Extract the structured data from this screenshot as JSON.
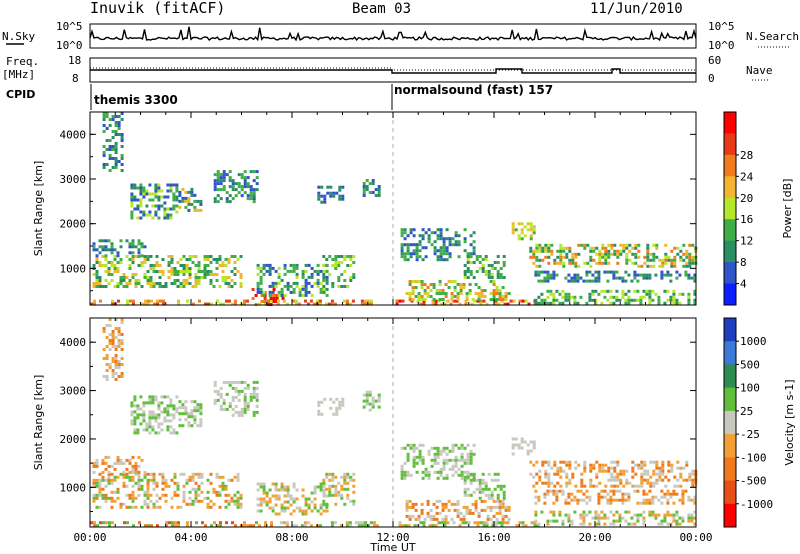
{
  "header": {
    "station": "Inuvik (fitACF)",
    "beam": "Beam 03",
    "date": "11/Jun/2010"
  },
  "status_panels": {
    "nsky_label": "N.Sky",
    "nsky_ticks": [
      "10^5",
      "10^0"
    ],
    "nsearch_label": "N.Search",
    "freq_label_1": "Freq.",
    "freq_label_2": "[MHz]",
    "freq_ticks": [
      "18",
      "8"
    ],
    "nave_label": "Nave",
    "nave_ticks": [
      "60",
      "0"
    ],
    "cpid_label": "CPID",
    "cpid_1": "themis 3300",
    "cpid_2": "normalsound (fast) 157"
  },
  "chart_data": [
    {
      "type": "heatmap",
      "title": "",
      "xlabel": "",
      "ylabel": "Slant Range [km]",
      "x_unit": "hour UT",
      "xlim": [
        0,
        24
      ],
      "ylim": [
        180,
        4500
      ],
      "yticks": [
        1000,
        2000,
        3000,
        4000
      ],
      "colorbar": {
        "label": "Power [dB]",
        "ticks": [
          "4",
          "8",
          "12",
          "16",
          "20",
          "24",
          "28"
        ],
        "colors": [
          "#0a1eff",
          "#2f55c8",
          "#2c8f63",
          "#3fae48",
          "#b8e62a",
          "#f2b531",
          "#ef7c1e",
          "#e83a16",
          "#ff0000"
        ]
      },
      "bands": [
        {
          "t0": 0.0,
          "t1": 7.2,
          "r0": 180,
          "r1": 300,
          "levels": [
            4,
            5,
            6,
            7
          ]
        },
        {
          "t0": 6.4,
          "t1": 7.6,
          "r0": 200,
          "r1": 560,
          "levels": [
            7,
            8,
            8,
            6
          ]
        },
        {
          "t0": 0.1,
          "t1": 6.0,
          "r0": 600,
          "r1": 1300,
          "levels": [
            2,
            3,
            4,
            5
          ]
        },
        {
          "t0": 0.1,
          "t1": 2.2,
          "r0": 1300,
          "r1": 1650,
          "levels": [
            1,
            2,
            3
          ]
        },
        {
          "t0": 0.5,
          "t1": 1.3,
          "r0": 3200,
          "r1": 4500,
          "levels": [
            1,
            2,
            3
          ]
        },
        {
          "t0": 1.6,
          "t1": 3.4,
          "r0": 2100,
          "r1": 2900,
          "levels": [
            1,
            2,
            3,
            4
          ]
        },
        {
          "t0": 3.5,
          "t1": 4.4,
          "r0": 2300,
          "r1": 2800,
          "levels": [
            1,
            2,
            3,
            5
          ]
        },
        {
          "t0": 4.9,
          "t1": 6.6,
          "r0": 2500,
          "r1": 3200,
          "levels": [
            1,
            2,
            3
          ]
        },
        {
          "t0": 7.4,
          "t1": 11.4,
          "r0": 200,
          "r1": 300,
          "levels": [
            4,
            5,
            6,
            7
          ]
        },
        {
          "t0": 6.6,
          "t1": 9.4,
          "r0": 420,
          "r1": 1100,
          "levels": [
            1,
            2,
            3,
            4
          ]
        },
        {
          "t0": 9.2,
          "t1": 10.4,
          "r0": 600,
          "r1": 1300,
          "levels": [
            2,
            3,
            4
          ]
        },
        {
          "t0": 9.0,
          "t1": 10.0,
          "r0": 2500,
          "r1": 2850,
          "levels": [
            1,
            2
          ]
        },
        {
          "t0": 10.8,
          "t1": 11.5,
          "r0": 2600,
          "r1": 3000,
          "levels": [
            1,
            2,
            3
          ]
        },
        {
          "t0": 12.1,
          "t1": 17.8,
          "r0": 190,
          "r1": 300,
          "levels": [
            4,
            5,
            6,
            7,
            8
          ]
        },
        {
          "t0": 12.5,
          "t1": 16.6,
          "r0": 320,
          "r1": 740,
          "levels": [
            3,
            4,
            5,
            6
          ]
        },
        {
          "t0": 12.3,
          "t1": 15.2,
          "r0": 1200,
          "r1": 1900,
          "levels": [
            1,
            2,
            3
          ]
        },
        {
          "t0": 14.8,
          "t1": 16.4,
          "r0": 800,
          "r1": 1300,
          "levels": [
            2,
            3,
            4
          ]
        },
        {
          "t0": 16.7,
          "t1": 17.6,
          "r0": 1680,
          "r1": 2030,
          "levels": [
            3,
            4,
            5
          ]
        },
        {
          "t0": 17.4,
          "t1": 24.0,
          "r0": 1050,
          "r1": 1550,
          "levels": [
            2,
            3,
            4,
            5,
            6
          ]
        },
        {
          "t0": 17.6,
          "t1": 24.0,
          "r0": 700,
          "r1": 950,
          "levels": [
            1,
            2,
            3
          ]
        },
        {
          "t0": 17.6,
          "t1": 24.0,
          "r0": 220,
          "r1": 520,
          "levels": [
            2,
            3,
            4
          ]
        }
      ]
    },
    {
      "type": "heatmap",
      "title": "",
      "xlabel": "Time UT",
      "ylabel": "Slant Range [km]",
      "x_unit": "hour UT",
      "xlim": [
        0,
        24
      ],
      "ylim": [
        180,
        4500
      ],
      "xticks": [
        "00:00",
        "04:00",
        "08:00",
        "12:00",
        "16:00",
        "20:00",
        "00:00"
      ],
      "yticks": [
        1000,
        2000,
        3000,
        4000
      ],
      "colorbar": {
        "label": "Velocity [m s-1]",
        "ticks": [
          "1000",
          "500",
          "100",
          "25",
          "-25",
          "-100",
          "-500",
          "-1000"
        ],
        "colors": [
          "#1f3dbd",
          "#3c7ad6",
          "#2f8c50",
          "#5fbf3a",
          "#c8c8c0",
          "#f2a033",
          "#ee7a1d",
          "#e94e16",
          "#ff0000"
        ]
      },
      "bands": [
        {
          "t0": 0.0,
          "t1": 7.2,
          "r0": 180,
          "r1": 300,
          "levels": [
            5,
            6,
            7,
            3
          ]
        },
        {
          "t0": 0.1,
          "t1": 6.0,
          "r0": 600,
          "r1": 1300,
          "levels": [
            5,
            6,
            4,
            3
          ]
        },
        {
          "t0": 0.1,
          "t1": 2.2,
          "r0": 1300,
          "r1": 1650,
          "levels": [
            5,
            6,
            4
          ]
        },
        {
          "t0": 0.5,
          "t1": 1.3,
          "r0": 3200,
          "r1": 4500,
          "levels": [
            4,
            5,
            6
          ]
        },
        {
          "t0": 1.6,
          "t1": 3.4,
          "r0": 2100,
          "r1": 2900,
          "levels": [
            4,
            3,
            4
          ]
        },
        {
          "t0": 3.5,
          "t1": 4.4,
          "r0": 2300,
          "r1": 2800,
          "levels": [
            4,
            4,
            3
          ]
        },
        {
          "t0": 4.9,
          "t1": 6.6,
          "r0": 2500,
          "r1": 3200,
          "levels": [
            4,
            3,
            4
          ]
        },
        {
          "t0": 7.4,
          "t1": 11.4,
          "r0": 200,
          "r1": 300,
          "levels": [
            3,
            4,
            5
          ]
        },
        {
          "t0": 6.6,
          "t1": 9.4,
          "r0": 420,
          "r1": 1100,
          "levels": [
            4,
            3,
            5
          ]
        },
        {
          "t0": 9.2,
          "t1": 10.4,
          "r0": 600,
          "r1": 1300,
          "levels": [
            3,
            4,
            5
          ]
        },
        {
          "t0": 9.0,
          "t1": 10.0,
          "r0": 2500,
          "r1": 2850,
          "levels": [
            4
          ]
        },
        {
          "t0": 10.8,
          "t1": 11.5,
          "r0": 2600,
          "r1": 3000,
          "levels": [
            4,
            3
          ]
        },
        {
          "t0": 12.1,
          "t1": 17.8,
          "r0": 190,
          "r1": 300,
          "levels": [
            3,
            4,
            5
          ]
        },
        {
          "t0": 12.5,
          "t1": 16.6,
          "r0": 320,
          "r1": 740,
          "levels": [
            5,
            6,
            4
          ]
        },
        {
          "t0": 12.3,
          "t1": 15.2,
          "r0": 1200,
          "r1": 1900,
          "levels": [
            4,
            3
          ]
        },
        {
          "t0": 14.8,
          "t1": 16.4,
          "r0": 800,
          "r1": 1300,
          "levels": [
            3,
            4
          ]
        },
        {
          "t0": 16.7,
          "t1": 17.6,
          "r0": 1680,
          "r1": 2030,
          "levels": [
            4
          ]
        },
        {
          "t0": 17.4,
          "t1": 24.0,
          "r0": 1050,
          "r1": 1550,
          "levels": [
            4,
            6,
            5
          ]
        },
        {
          "t0": 17.6,
          "t1": 24.0,
          "r0": 700,
          "r1": 950,
          "levels": [
            6,
            5,
            4
          ]
        },
        {
          "t0": 17.6,
          "t1": 24.0,
          "r0": 220,
          "r1": 520,
          "levels": [
            4,
            3,
            5
          ]
        }
      ]
    }
  ]
}
